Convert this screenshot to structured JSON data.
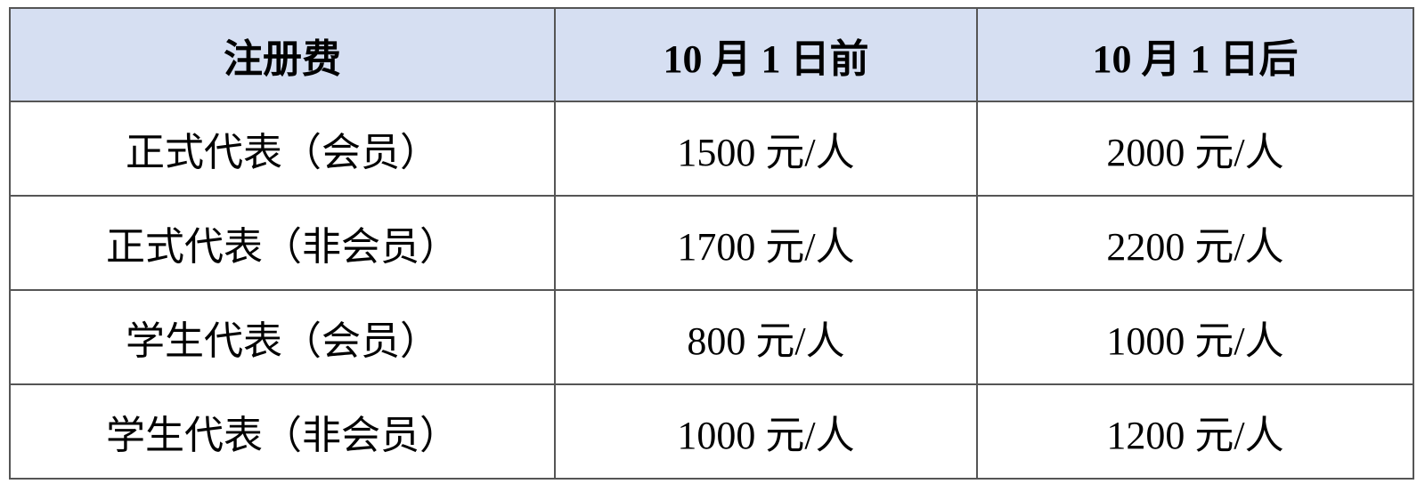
{
  "table": {
    "headers": [
      "注册费",
      "10 月 1 日前",
      "10 月 1 日后"
    ],
    "rows": [
      [
        "正式代表（会员）",
        "1500 元/人",
        "2000 元/人"
      ],
      [
        "正式代表（非会员）",
        "1700 元/人",
        "2200 元/人"
      ],
      [
        "学生代表（会员）",
        "800 元/人",
        "1000 元/人"
      ],
      [
        "学生代表（非会员）",
        "1000 元/人",
        "1200 元/人"
      ]
    ],
    "header_bg": "#d6dff2"
  }
}
